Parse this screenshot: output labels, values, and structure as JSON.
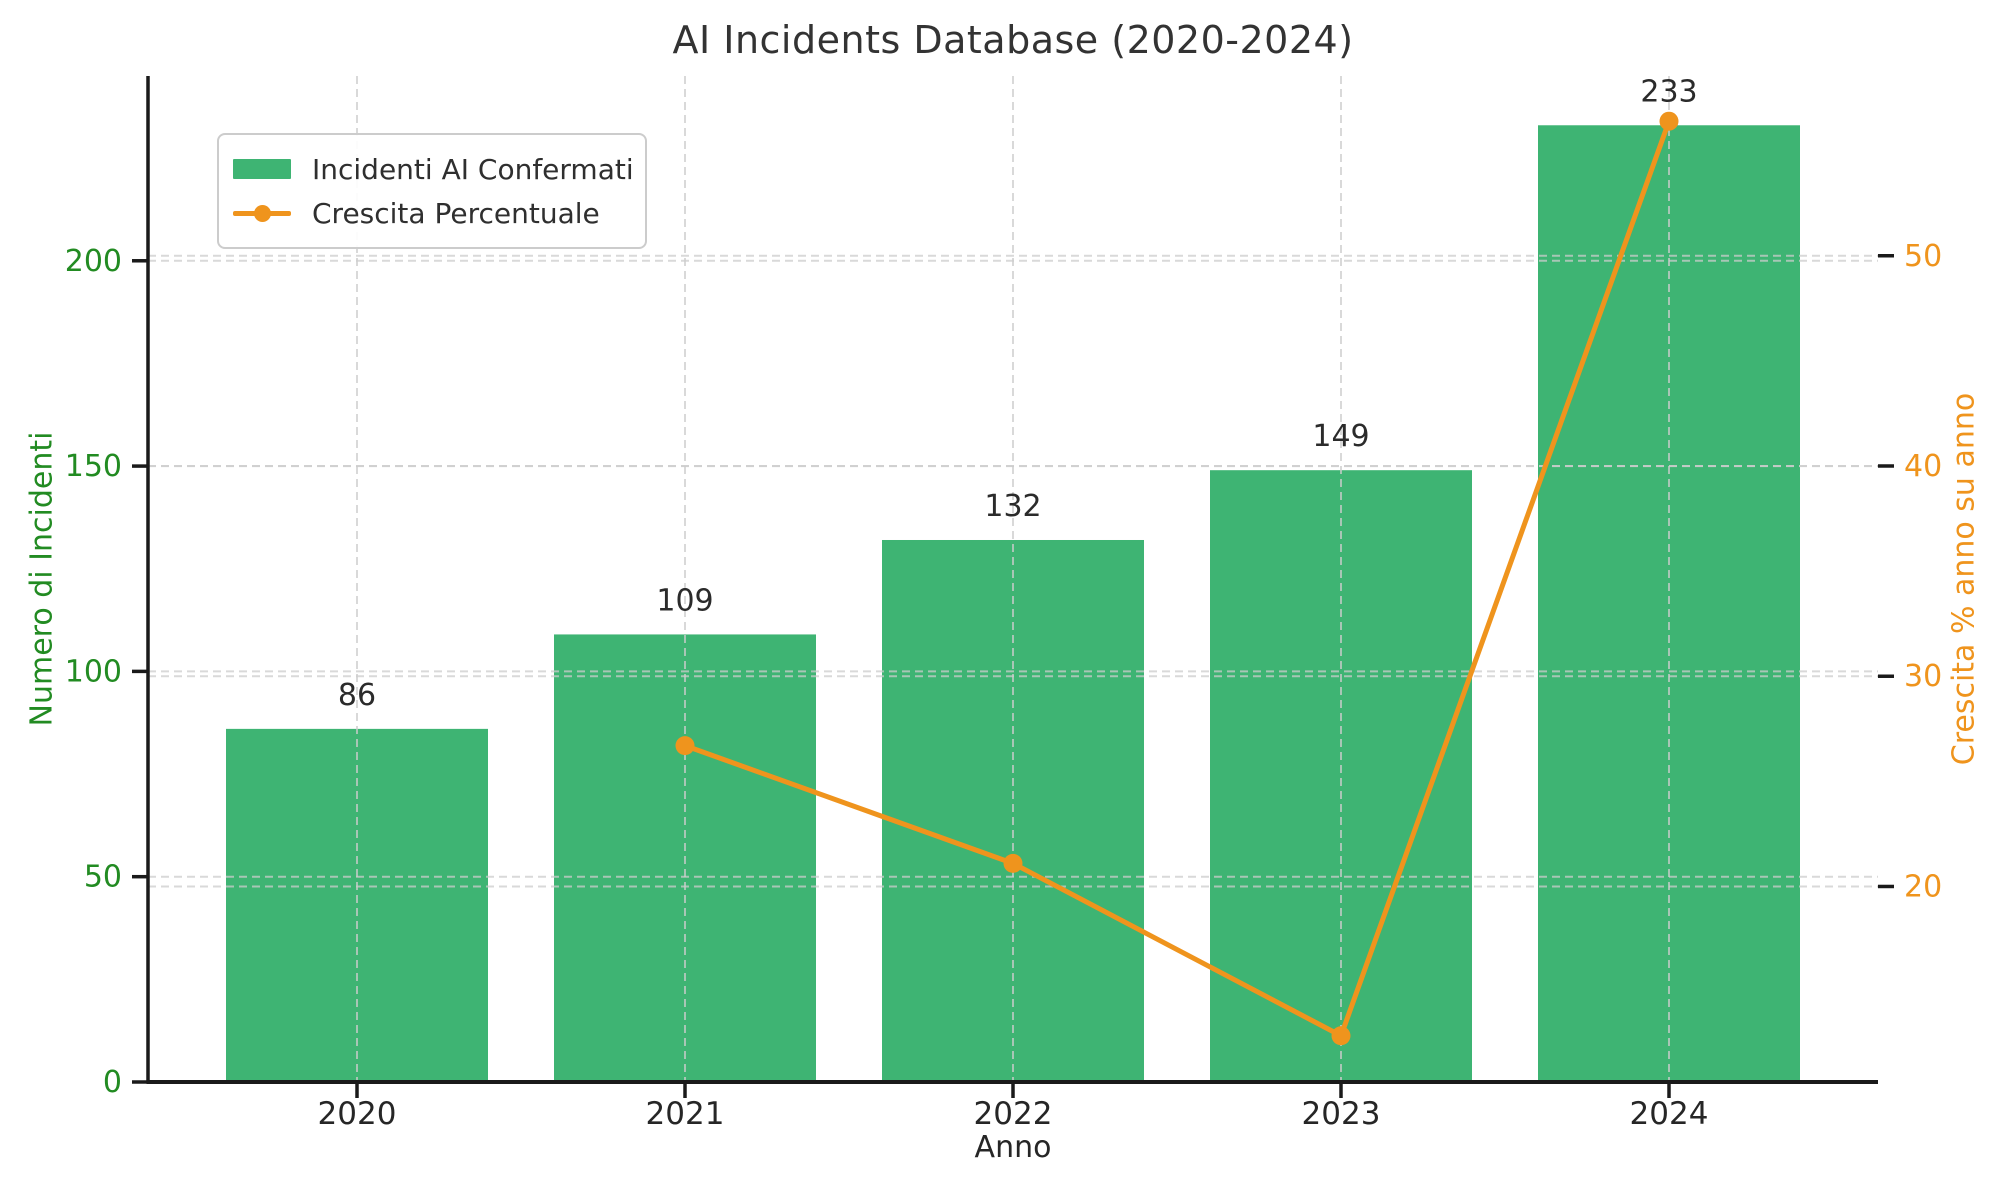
{
  "chart_data": {
    "type": "bar",
    "title": "AI Incidents Database (2020-2024)",
    "xlabel": "Anno",
    "ylabel_left": "Numero di Incidenti",
    "ylabel_right": "Crescita % anno su anno",
    "categories": [
      "2020",
      "2021",
      "2022",
      "2023",
      "2024"
    ],
    "series": [
      {
        "name": "Incidenti AI Confermati",
        "type": "bar",
        "axis": "left",
        "values": [
          86,
          109,
          132,
          149,
          233
        ],
        "color": "#3EB473"
      },
      {
        "name": "Crescita Percentuale",
        "type": "line",
        "axis": "right",
        "x": [
          "2021",
          "2022",
          "2023",
          "2024"
        ],
        "values": [
          26.7,
          21.1,
          12.9,
          56.4
        ],
        "color": "#EF941D"
      }
    ],
    "bar_value_labels": [
      "86",
      "109",
      "132",
      "149",
      "233"
    ],
    "yticks_left": [
      0,
      50,
      100,
      150,
      200
    ],
    "yticks_right": [
      20,
      30,
      40,
      50
    ],
    "ylim_left": [
      0,
      245
    ],
    "ylim_right": [
      10.7,
      58.55
    ],
    "grid": "dashed",
    "legend_position": "upper left",
    "colors": {
      "bar": "#3EB473",
      "line": "#EF941D",
      "left_axis_text": "#228B22",
      "right_axis_text": "#EF941D",
      "tick_text": "#262626",
      "title_text": "#333333",
      "grid": "#cccccc",
      "spine": "#1a1a1a"
    }
  }
}
